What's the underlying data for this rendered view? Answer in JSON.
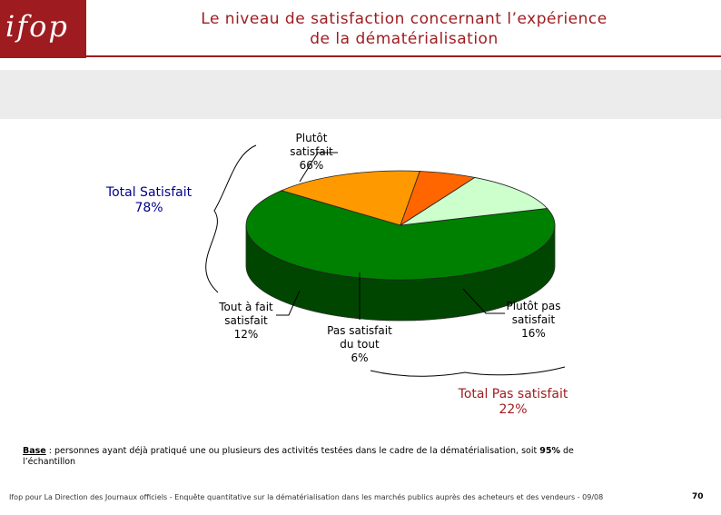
{
  "logo": {
    "text": "ifop"
  },
  "title": {
    "line1": "Le niveau de satisfaction concernant l’expérience",
    "line2": "de la dématérialisation"
  },
  "colors": {
    "brand": "#9e1b1f",
    "plutot_satisfait": "#008000",
    "tout_a_fait_satisfait": "#ccffcc",
    "pas_satisfait_du_tout": "#ff6600",
    "plutot_pas_satisfait": "#ff9900"
  },
  "chart_data": {
    "type": "pie",
    "variant": "3d-pie",
    "slices": [
      {
        "label_line1": "Plutôt",
        "label_line2": "satisfait",
        "value_label": "66%",
        "value": 66
      },
      {
        "label_line1": "Plutôt pas",
        "label_line2": "satisfait",
        "value_label": "16%",
        "value": 16
      },
      {
        "label_line1": "Pas satisfait",
        "label_line2": "du tout",
        "value_label": "6%",
        "value": 6
      },
      {
        "label_line1": "Tout à fait",
        "label_line2": "satisfait",
        "value_label": "12%",
        "value": 12
      }
    ],
    "totals": [
      {
        "label": "Total Satisfait",
        "value_label": "78%",
        "value": 78
      },
      {
        "label": "Total Pas satisfait",
        "value_label": "22%",
        "value": 22
      }
    ]
  },
  "base": {
    "key": "Base",
    "text": " : personnes ayant déjà pratiqué une ou plusieurs des activités testées dans le cadre de la dématérialisation, soit  ",
    "pct": "95%",
    "text2": " de l’échantillon"
  },
  "footer": {
    "source": "Ifop pour La Direction des Journaux officiels - Enquête quantitative sur la dématérialisation dans les marchés publics auprès des acheteurs et des vendeurs - 09/08",
    "page": "70"
  }
}
